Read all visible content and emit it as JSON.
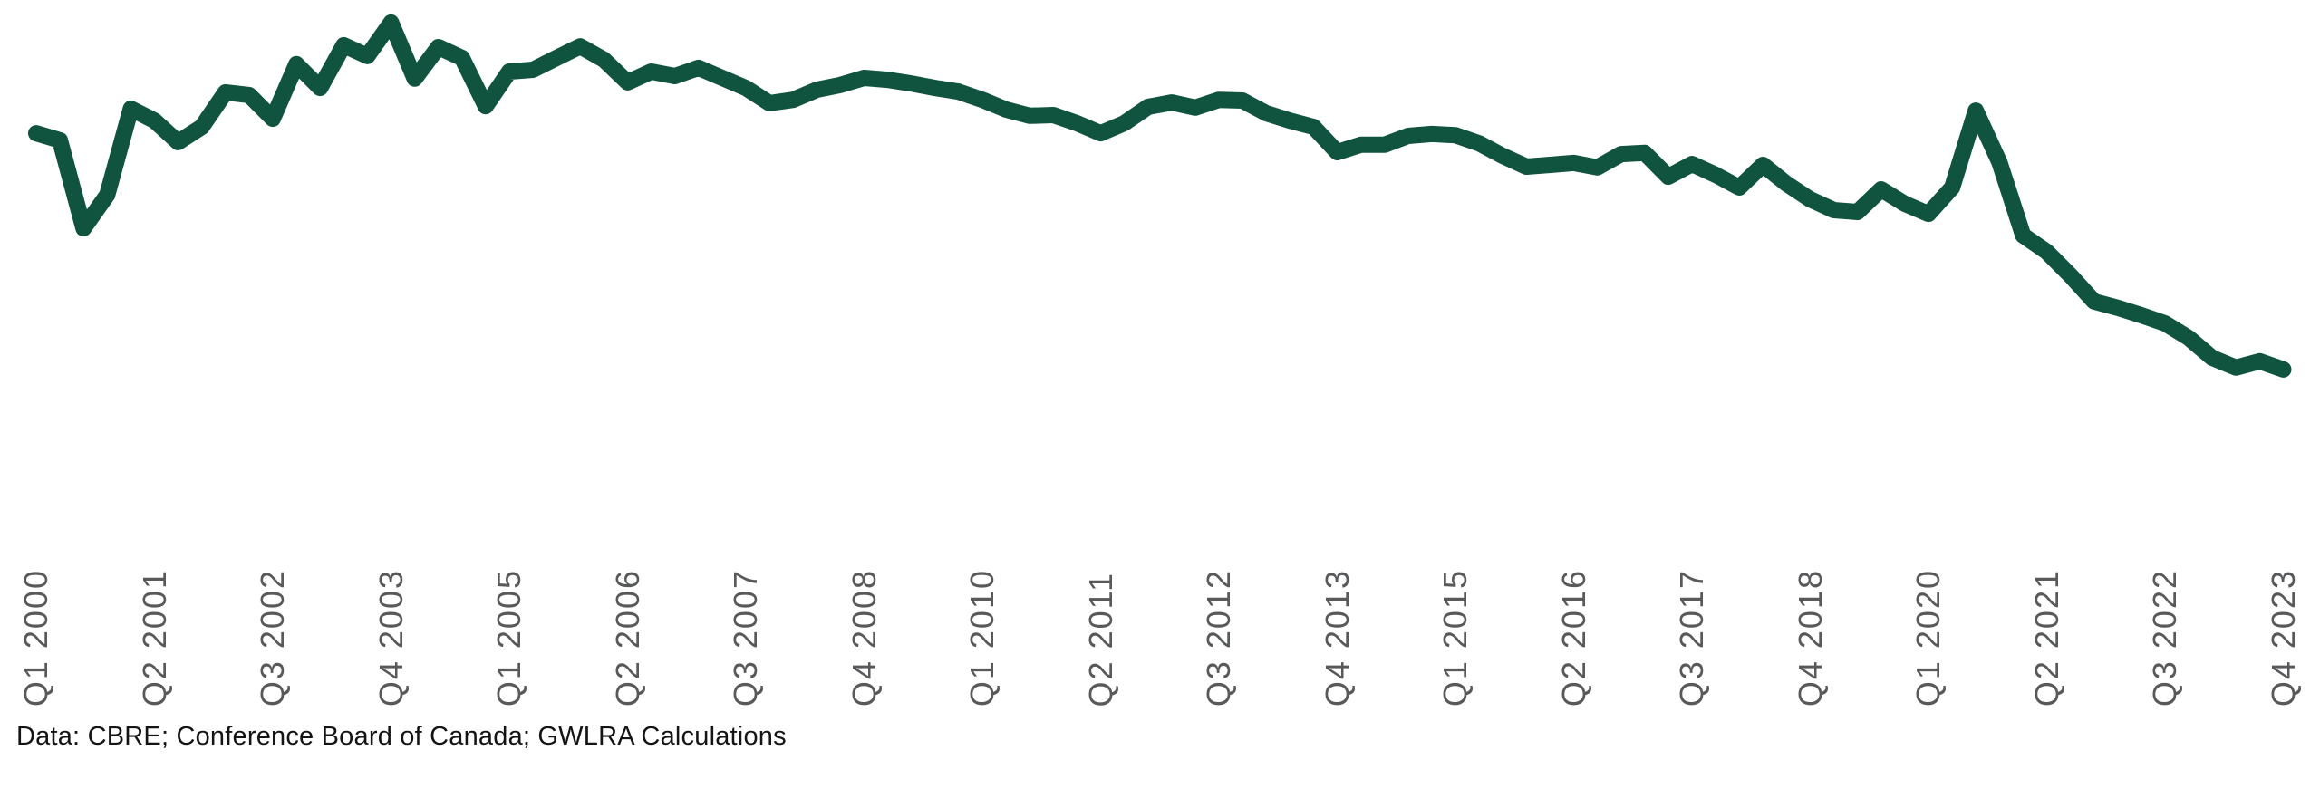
{
  "page": {
    "background": "#ffffff"
  },
  "colors": {
    "line": "#10543f",
    "axis_label": "#58595b",
    "caption_text": "#141414"
  },
  "caption": {
    "text": "Data: CBRE; Conference Board of Canada; GWLRA Calculations"
  },
  "chart_data": {
    "type": "line",
    "title": "",
    "x_range": [
      "Q1 2000",
      "Q4 2023"
    ],
    "x_label_every": 5,
    "x_labels": [
      "Q1 2000",
      "Q2 2001",
      "Q3 2002",
      "Q4 2003",
      "Q1 2005",
      "Q2 2006",
      "Q3 2007",
      "Q4 2008",
      "Q1 2010",
      "Q2 2011",
      "Q3 2012",
      "Q4 2013",
      "Q1 2015",
      "Q2 2016",
      "Q3 2017",
      "Q4 2018",
      "Q1 2020",
      "Q2 2021",
      "Q3 2022",
      "Q4 2023"
    ],
    "quarters": [
      "Q1 2000",
      "Q2 2000",
      "Q3 2000",
      "Q4 2000",
      "Q1 2001",
      "Q2 2001",
      "Q3 2001",
      "Q4 2001",
      "Q1 2002",
      "Q2 2002",
      "Q3 2002",
      "Q4 2002",
      "Q1 2003",
      "Q2 2003",
      "Q3 2003",
      "Q4 2003",
      "Q1 2004",
      "Q2 2004",
      "Q3 2004",
      "Q4 2004",
      "Q1 2005",
      "Q2 2005",
      "Q3 2005",
      "Q4 2005",
      "Q1 2006",
      "Q2 2006",
      "Q3 2006",
      "Q4 2006",
      "Q1 2007",
      "Q2 2007",
      "Q3 2007",
      "Q4 2007",
      "Q1 2008",
      "Q2 2008",
      "Q3 2008",
      "Q4 2008",
      "Q1 2009",
      "Q2 2009",
      "Q3 2009",
      "Q4 2009",
      "Q1 2010",
      "Q2 2010",
      "Q3 2010",
      "Q4 2010",
      "Q1 2011",
      "Q2 2011",
      "Q3 2011",
      "Q4 2011",
      "Q1 2012",
      "Q2 2012",
      "Q3 2012",
      "Q4 2012",
      "Q1 2013",
      "Q2 2013",
      "Q3 2013",
      "Q4 2013",
      "Q1 2014",
      "Q2 2014",
      "Q3 2014",
      "Q4 2014",
      "Q1 2015",
      "Q2 2015",
      "Q3 2015",
      "Q4 2015",
      "Q1 2016",
      "Q2 2016",
      "Q3 2016",
      "Q4 2016",
      "Q1 2017",
      "Q2 2017",
      "Q3 2017",
      "Q4 2017",
      "Q1 2018",
      "Q2 2018",
      "Q3 2018",
      "Q4 2018",
      "Q1 2019",
      "Q2 2019",
      "Q3 2019",
      "Q4 2019",
      "Q1 2020",
      "Q2 2020",
      "Q3 2020",
      "Q4 2020",
      "Q1 2021",
      "Q2 2021",
      "Q3 2021",
      "Q4 2021",
      "Q1 2022",
      "Q2 2022",
      "Q3 2022",
      "Q4 2022",
      "Q1 2023",
      "Q2 2023",
      "Q3 2023",
      "Q4 2023"
    ],
    "series": [
      {
        "name": "index",
        "values_relative": [
          69.0,
          67.1,
          43.4,
          52.4,
          75.6,
          72.4,
          66.6,
          70.7,
          80.0,
          79.3,
          72.9,
          87.6,
          81.2,
          92.7,
          89.8,
          98.8,
          83.7,
          92.2,
          89.3,
          76.3,
          85.6,
          86.1,
          89.3,
          92.4,
          88.8,
          82.7,
          85.6,
          84.4,
          86.6,
          83.9,
          81.2,
          77.1,
          78.0,
          80.7,
          82.0,
          83.9,
          83.4,
          82.4,
          81.2,
          80.2,
          78.0,
          75.4,
          73.7,
          73.9,
          71.7,
          69.0,
          71.7,
          76.1,
          77.3,
          75.9,
          78.0,
          77.8,
          74.4,
          72.4,
          70.7,
          63.9,
          65.9,
          65.9,
          68.3,
          68.8,
          68.5,
          66.3,
          62.9,
          60.0,
          60.5,
          61.0,
          59.8,
          63.4,
          63.7,
          57.3,
          60.7,
          57.8,
          54.4,
          60.5,
          55.4,
          51.2,
          48.3,
          47.8,
          53.9,
          50.0,
          47.3,
          54.4,
          75.1,
          61.2,
          41.5,
          37.1,
          30.7,
          23.7,
          22.0,
          20.0,
          17.8,
          13.9,
          8.5,
          5.9,
          7.6,
          5.4
        ]
      }
    ],
    "y_axis_visible": false,
    "value_scale_note": "no y-axis shown; values are relative levels 0-100 of plot height",
    "layout": {
      "grid": false,
      "legend": "none",
      "x0": 40,
      "dx": 26.1,
      "y_base": 430,
      "y_scale": 4.1,
      "stroke_width": 18
    }
  }
}
